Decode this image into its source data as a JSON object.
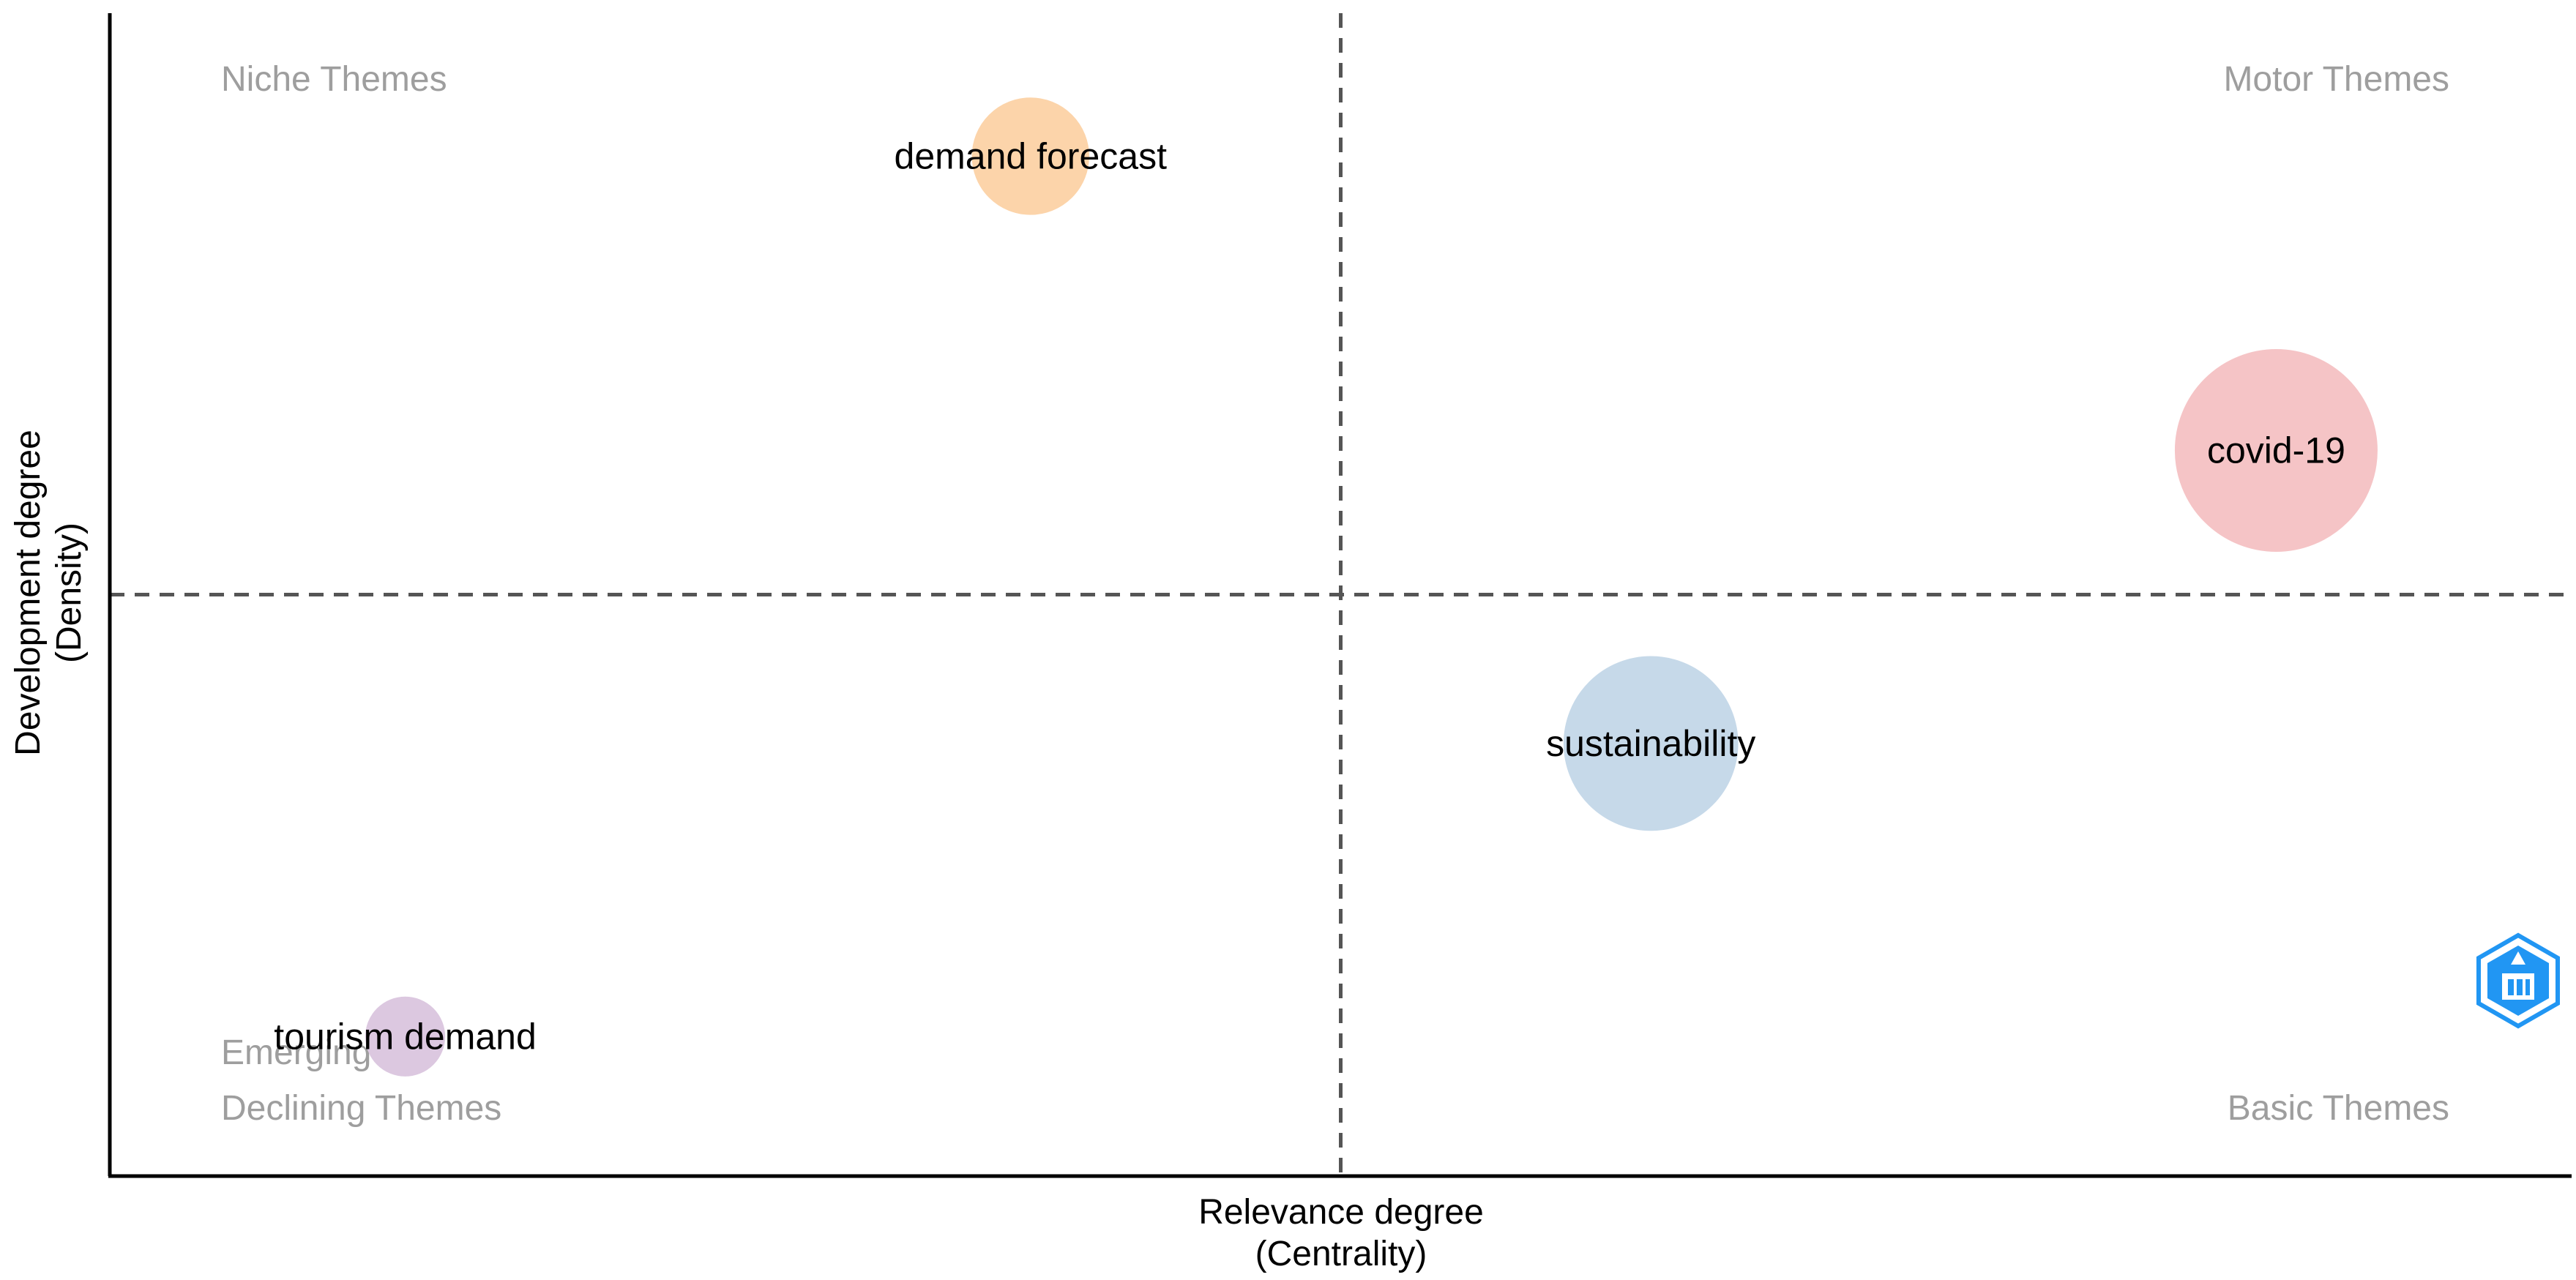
{
  "chart_data": {
    "type": "scatter",
    "kind": "thematic-map",
    "xlabel": [
      "Relevance degree",
      "(Centrality)"
    ],
    "ylabel": [
      "Development degree",
      "(Density)"
    ],
    "quadrants": {
      "top_left": [
        "Niche Themes"
      ],
      "top_right": [
        "Motor Themes"
      ],
      "bottom_left": [
        "Emerging or",
        "Declining Themes"
      ],
      "bottom_right": [
        "Basic Themes"
      ]
    },
    "xlim": [
      0,
      1
    ],
    "ylim": [
      0,
      1
    ],
    "reference_lines": {
      "x": 0.5,
      "y": 0.5,
      "style": "dashed"
    },
    "points": [
      {
        "label": "demand forecast",
        "x": 0.374,
        "y": 0.877,
        "size": 0.33,
        "color": "#fcd4aa"
      },
      {
        "label": "covid-19",
        "x": 0.88,
        "y": 0.624,
        "size": 1.0,
        "color": "#f5c4c6"
      },
      {
        "label": "sustainability",
        "x": 0.626,
        "y": 0.372,
        "size": 0.74,
        "color": "#c6d9e9"
      },
      {
        "label": "tourism demand",
        "x": 0.12,
        "y": 0.12,
        "size": 0.15,
        "color": "#dcc8e0"
      }
    ],
    "grid": false,
    "legend": "none"
  },
  "colors": {
    "axis": "#000000",
    "reference_line": "#555555",
    "quadrant_label": "#9e9e9e",
    "logo": "#2196f3"
  },
  "watermark": {
    "icon": "bibliometrix-logo-icon"
  }
}
